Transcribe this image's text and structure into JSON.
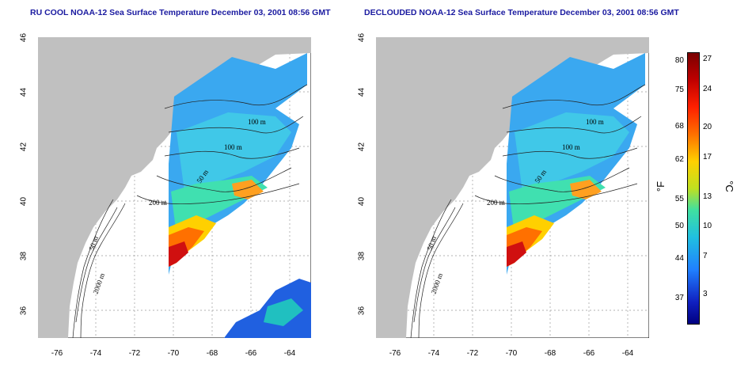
{
  "panels": [
    {
      "title": "RU COOL NOAA-12 Sea Surface Temperature December 03, 2001 08:56 GMT",
      "contours": [
        "100 m",
        "100 m",
        "50 m",
        "200 m",
        "50 m",
        "2000 m"
      ]
    },
    {
      "title": "DECLOUDED NOAA-12 Sea Surface Temperature December 03, 2001 08:56 GMT",
      "contours": [
        "100 m",
        "100 m",
        "50 m",
        "200 m",
        "50 m",
        "2000 m"
      ]
    }
  ],
  "axes": {
    "lat_ticks": [
      "46",
      "44",
      "42",
      "40",
      "38",
      "36"
    ],
    "lon_ticks": [
      "-76",
      "-74",
      "-72",
      "-70",
      "-68",
      "-66",
      "-64"
    ]
  },
  "colorbar": {
    "fahrenheit_ticks": [
      "80",
      "75",
      "68",
      "62",
      "55",
      "50",
      "44",
      "37"
    ],
    "celsius_ticks": [
      "27",
      "24",
      "20",
      "17",
      "13",
      "10",
      "7",
      "3"
    ],
    "fahrenheit_unit": "°F",
    "celsius_unit": "°C"
  },
  "colors": {
    "land": "#c0c0c0",
    "title": "#1a1aa0",
    "cold": "#1020c0",
    "cool": "#3aa8f0",
    "mid": "#40e0b0",
    "warm": "#ffd000",
    "hot": "#ff3000"
  }
}
